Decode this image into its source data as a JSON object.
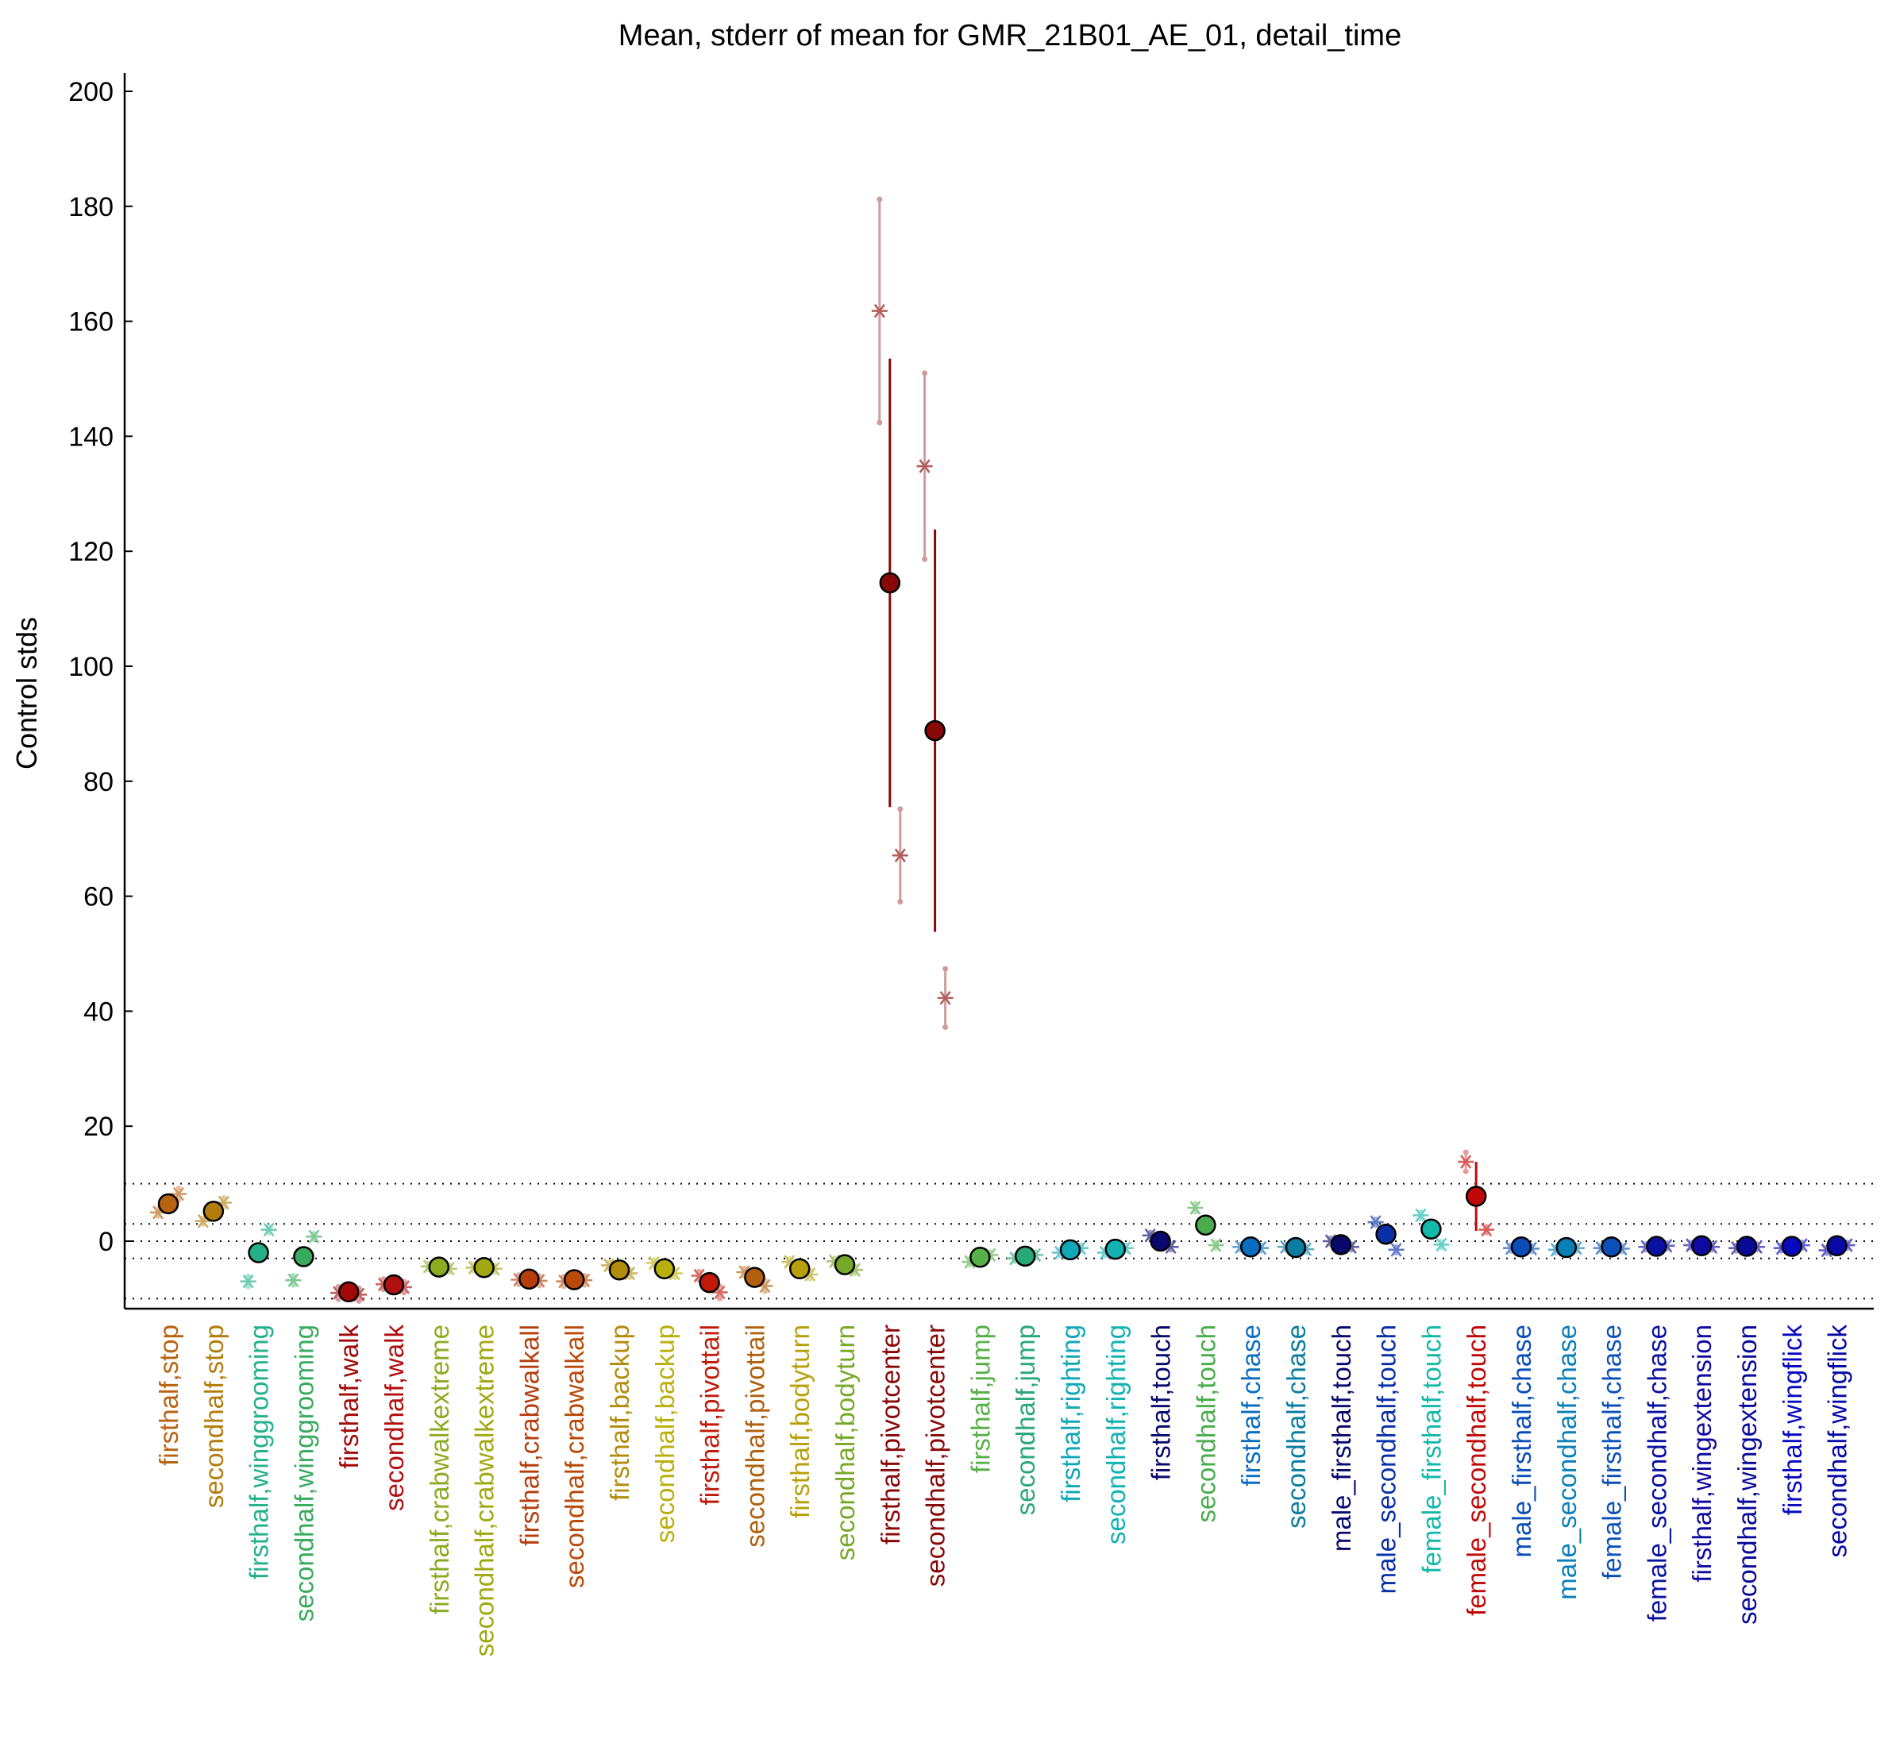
{
  "chart_data": {
    "type": "scatter",
    "title": "Mean, stderr of mean for GMR_21B01_AE_01, detail_time",
    "xlabel": "",
    "ylabel": "Control stds",
    "ylim": [
      -11,
      203
    ],
    "yticks": [
      0,
      20,
      40,
      60,
      80,
      100,
      120,
      140,
      160,
      180,
      200
    ],
    "hlines": [
      10,
      3,
      0,
      -3,
      -10
    ],
    "grid": false,
    "legend": "none",
    "categories": [
      "firsthalf,stop",
      "secondhalf,stop",
      "firsthalf,winggrooming",
      "secondhalf,winggrooming",
      "firsthalf,walk",
      "secondhalf,walk",
      "firsthalf,crabwalkextreme",
      "secondhalf,crabwalkextreme",
      "firsthalf,crabwalkall",
      "secondhalf,crabwalkall",
      "firsthalf,backup",
      "secondhalf,backup",
      "firsthalf,pivottail",
      "secondhalf,pivottail",
      "firsthalf,bodyturn",
      "secondhalf,bodyturn",
      "firsthalf,pivotcenter",
      "secondhalf,pivotcenter",
      "firsthalf,jump",
      "secondhalf,jump",
      "firsthalf,righting",
      "secondhalf,righting",
      "firsthalf,touch",
      "secondhalf,touch",
      "firsthalf,chase",
      "secondhalf,chase",
      "male_firsthalf,touch",
      "male_secondhalf,touch",
      "female_firsthalf,touch",
      "female_secondhalf,touch",
      "male_firsthalf,chase",
      "male_secondhalf,chase",
      "female_firsthalf,chase",
      "female_secondhalf,chase",
      "firsthalf,wingextension",
      "secondhalf,wingextension",
      "firsthalf,wingflick",
      "secondhalf,wingflick"
    ],
    "colors": [
      "#b8630f",
      "#b27d0c",
      "#25b08a",
      "#3aaa5e",
      "#a20808",
      "#b01010",
      "#8cab20",
      "#a0a812",
      "#b53e0c",
      "#b84a0a",
      "#b28c0c",
      "#b9b00e",
      "#c01a0a",
      "#b0600e",
      "#b6a00c",
      "#78a828",
      "#880808",
      "#880808",
      "#58b048",
      "#28a878",
      "#10a8b8",
      "#12b2b2",
      "#08086e",
      "#4aac4c",
      "#0a6ec0",
      "#0a7ca0",
      "#08086e",
      "#0a30a8",
      "#12b8a8",
      "#c00808",
      "#0a4cb8",
      "#0a80b8",
      "#0a50b8",
      "#0a10a0",
      "#1008a0",
      "#0a0898",
      "#0808c0",
      "#0808a8"
    ],
    "means": [
      6.5,
      5.2,
      -2,
      -2.7,
      -8.8,
      -7.6,
      -4.5,
      -4.6,
      -6.6,
      -6.7,
      -5,
      -4.8,
      -7.2,
      -6.3,
      -4.8,
      -4.1,
      114.5,
      88.8,
      -2.8,
      -2.6,
      -1.5,
      -1.4,
      0,
      2.8,
      -1,
      -1.1,
      -0.6,
      1.2,
      2.1,
      7.8,
      -1,
      -1.1,
      -1,
      -0.9,
      -0.8,
      -0.9,
      -0.9,
      -0.8
    ],
    "sem": [
      1,
      0.7,
      0.8,
      0.7,
      0.6,
      0.5,
      0.4,
      0.4,
      0.4,
      0.4,
      0.5,
      0.5,
      0.6,
      0.5,
      0.4,
      0.4,
      39,
      35,
      0.3,
      0.3,
      0.3,
      0.3,
      0.5,
      0.6,
      0.3,
      0.3,
      0.5,
      0.6,
      0.6,
      6,
      0.3,
      0.3,
      0.3,
      0.3,
      0.3,
      0.3,
      0.3,
      0.3
    ],
    "series": [
      {
        "values": [
          5,
          3.5,
          -7,
          -6.8,
          -9,
          -7.5,
          -4.4,
          -4.6,
          -6.7,
          -7,
          -4.2,
          -3.8,
          -6,
          -5.4,
          -3.6,
          -3.5,
          161.8,
          134.8,
          -3.6,
          -3,
          -2,
          -2,
          1,
          5.8,
          -1,
          -1,
          0,
          3.3,
          4.5,
          13.8,
          -1.2,
          -1.5,
          -1.2,
          -1,
          -0.7,
          -1.2,
          -1.2,
          -1.6
        ]
      },
      {
        "values": [
          8.2,
          6.7,
          2,
          0.8,
          -9.3,
          -8,
          -4.8,
          -4.8,
          -6.9,
          -6.8,
          -5.6,
          -5.6,
          -8.9,
          -7.8,
          -5.8,
          -5,
          67.1,
          42.3,
          -2.4,
          -2.4,
          -1.2,
          -1.2,
          -1,
          -0.7,
          -1.2,
          -1.4,
          -1,
          -1.5,
          -0.6,
          2,
          -1.3,
          -1.2,
          -1.3,
          -0.8,
          -1,
          -1,
          -0.7,
          -0.7
        ]
      }
    ]
  }
}
